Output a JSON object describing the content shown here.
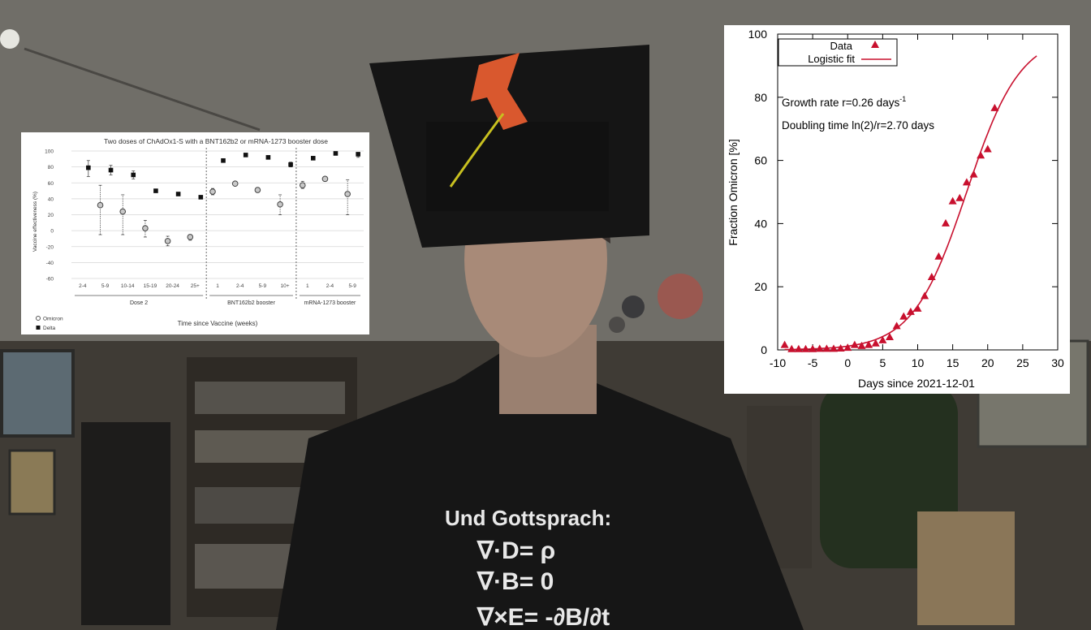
{
  "video": {
    "shirt_text": [
      "Und Gottsprach:",
      "∇·D= ρ",
      "∇·B= 0",
      "∇×E= -∂B/∂t"
    ],
    "background_color": "#6b6860"
  },
  "chart_data": [
    {
      "type": "scatter",
      "title": "Two doses of ChAdOx1-S with a BNT162b2 or mRNA-1273 booster dose",
      "xlabel": "Time since Vaccine (weeks)",
      "ylabel": "Vaccine effectiveness (%)",
      "ylim": [
        -60,
        100
      ],
      "yticks": [
        -60,
        -40,
        -20,
        0,
        20,
        40,
        60,
        80,
        100
      ],
      "grid": true,
      "categories": [
        "2-4",
        "5-9",
        "10-14",
        "15-19",
        "20-24",
        "25+",
        "1",
        "2-4",
        "5-9",
        "10+",
        "1",
        "2-4",
        "5-9"
      ],
      "groups": [
        {
          "label": "Dose 2",
          "from": 0,
          "to": 5
        },
        {
          "label": "BNT162b2 booster",
          "from": 6,
          "to": 9
        },
        {
          "label": "mRNA-1273 booster",
          "from": 10,
          "to": 12
        }
      ],
      "series": [
        {
          "name": "Omicron",
          "marker": "circle-open",
          "color": "#555555",
          "values": [
            null,
            32,
            24,
            3,
            -13,
            -8,
            49,
            59,
            51,
            33,
            57,
            65,
            46
          ],
          "lower": [
            null,
            -5,
            -5,
            -8,
            -19,
            -12,
            45,
            57,
            48,
            20,
            53,
            62,
            20
          ],
          "upper": [
            null,
            57,
            45,
            13,
            -7,
            -5,
            53,
            61,
            54,
            45,
            62,
            68,
            64
          ]
        },
        {
          "name": "Delta",
          "marker": "square-filled",
          "color": "#111111",
          "values": [
            79,
            76,
            70,
            50,
            46,
            42,
            88,
            95,
            92,
            83,
            91,
            97,
            96
          ],
          "lower": [
            68,
            70,
            65,
            48,
            45,
            41,
            86,
            94,
            90,
            80,
            89,
            96,
            92
          ],
          "upper": [
            88,
            82,
            75,
            52,
            48,
            44,
            89,
            96,
            93,
            86,
            93,
            98,
            97
          ]
        }
      ],
      "legend": "bottom-left"
    },
    {
      "type": "scatter",
      "xlabel": "Days since 2021-12-01",
      "ylabel": "Fraction Omicron [%]",
      "xlim": [
        -10,
        30
      ],
      "ylim": [
        0,
        100
      ],
      "xticks": [
        -10,
        -5,
        0,
        5,
        10,
        15,
        20,
        25,
        30
      ],
      "yticks": [
        0,
        20,
        40,
        60,
        80,
        100
      ],
      "legend": "top-left",
      "color": "#c8102e",
      "series": [
        {
          "name": "Data",
          "marker": "triangle",
          "x": [
            -9,
            -8,
            -7,
            -6,
            -5,
            -4,
            -3,
            -2,
            -1,
            0,
            1,
            2,
            3,
            4,
            5,
            6,
            7,
            8,
            9,
            10,
            11,
            12,
            13,
            14,
            15,
            16,
            17,
            18,
            19,
            20,
            21
          ],
          "y": [
            1.5,
            0.2,
            0.2,
            0.2,
            0.2,
            0.3,
            0.3,
            0.3,
            0.4,
            0.6,
            1.5,
            1.2,
            1.5,
            2,
            3,
            4,
            7.5,
            10.5,
            12,
            13,
            17,
            23,
            29.5,
            40,
            47,
            48,
            53,
            55.5,
            61.5,
            63.5,
            76.5
          ]
        },
        {
          "name": "Logistic fit",
          "type": "line",
          "growth_rate": 0.26,
          "midpoint_day": 17,
          "x_range": [
            -9,
            27
          ]
        }
      ],
      "annotations": [
        "Growth rate r=0.26 days",
        "-1",
        "Doubling time ln(2)/r=2.70 days"
      ]
    }
  ]
}
